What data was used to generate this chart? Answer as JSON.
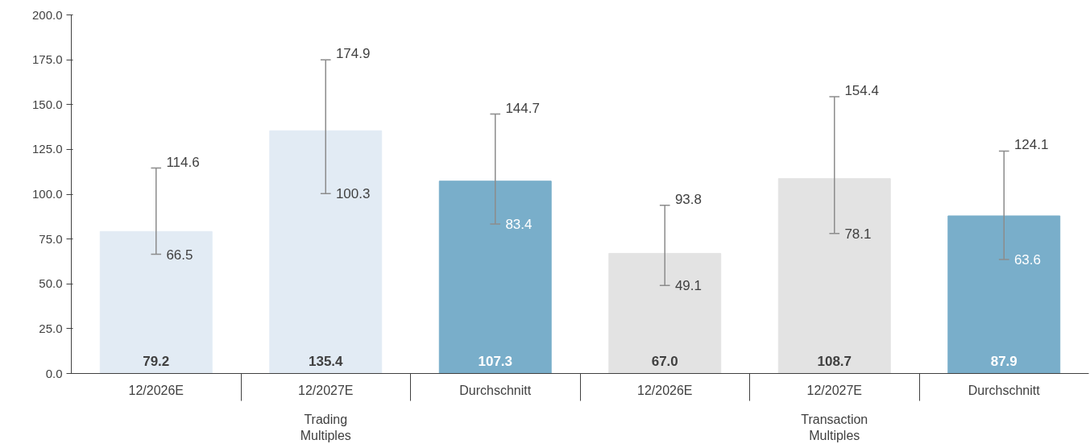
{
  "chart_data": {
    "type": "bar",
    "categories": [
      "12/2026E",
      "12/2027E",
      "Durchschnitt",
      "12/2026E",
      "12/2027E",
      "Durchschnitt"
    ],
    "values": [
      79.2,
      135.4,
      107.3,
      67.0,
      108.7,
      87.9
    ],
    "value_labels": [
      "79.2",
      "135.4",
      "107.3",
      "67.0",
      "108.7",
      "87.9"
    ],
    "colors": [
      "#e2ebf4",
      "#e2ebf4",
      "#79aeca",
      "#e3e3e3",
      "#e3e3e3",
      "#79aeca"
    ],
    "errors": [
      [
        66.5,
        114.6
      ],
      [
        100.3,
        174.9
      ],
      [
        83.4,
        144.7
      ],
      [
        49.1,
        93.8
      ],
      [
        78.1,
        154.4
      ],
      [
        63.6,
        124.1
      ]
    ],
    "annotations": [
      "Trading\nMultiples",
      "Transaction\nMultiples",
      {
        "text": "114.6",
        "x": "12/2026E",
        "y": 114.6
      },
      {
        "text": "66.5",
        "x": "12/2026E",
        "y": 66.5
      },
      {
        "text": "174.9",
        "x": "12/2027E",
        "y": 174.9
      },
      {
        "text": "100.3",
        "x": "12/2027E",
        "y": 100.3
      },
      {
        "text": "144.7",
        "x": "Durchschnitt",
        "y": 144.7
      },
      {
        "text": "83.4",
        "x": "Durchschnitt",
        "y": 83.4
      },
      "93.8",
      "49.1",
      "154.4",
      "78.1",
      "124.1",
      "63.6"
    ],
    "ylim": [
      0,
      200
    ],
    "yticks": [
      {
        "value": 0,
        "label": "0.0"
      },
      {
        "value": 25,
        "label": "25.0"
      },
      {
        "value": 50,
        "label": "50.0"
      },
      {
        "value": 75,
        "label": "75.0"
      },
      {
        "value": 100,
        "label": "100.0"
      },
      {
        "value": 125,
        "label": "125.0"
      },
      {
        "value": 150,
        "label": "150.0"
      },
      {
        "value": 175,
        "label": "175.0"
      },
      {
        "value": 200,
        "label": "200.0"
      }
    ],
    "grid": false
  }
}
